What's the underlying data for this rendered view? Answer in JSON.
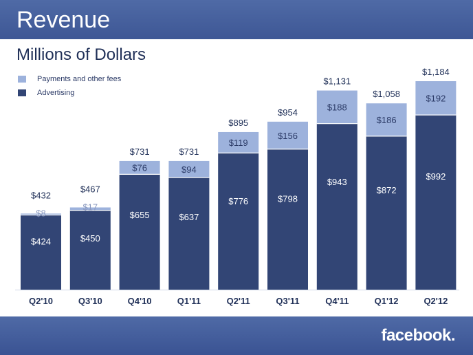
{
  "header": {
    "title": "Revenue"
  },
  "footer": {
    "logo_text": "facebook."
  },
  "colors": {
    "advertising": "#324575",
    "payments": "#9db2dc",
    "accent": "#3b5998"
  },
  "chart_data": {
    "type": "bar",
    "stacked": true,
    "title": "Revenue",
    "subtitle": "Millions of Dollars",
    "categories": [
      "Q2'10",
      "Q3'10",
      "Q4'10",
      "Q1'11",
      "Q2'11",
      "Q3'11",
      "Q4'11",
      "Q1'12",
      "Q2'12"
    ],
    "series": [
      {
        "name": "Advertising",
        "values": [
          424,
          450,
          655,
          637,
          776,
          798,
          943,
          872,
          992
        ],
        "labels": [
          "$424",
          "$450",
          "$655",
          "$637",
          "$776",
          "$798",
          "$943",
          "$872",
          "$992"
        ]
      },
      {
        "name": "Payments and other fees",
        "values": [
          8,
          17,
          76,
          94,
          119,
          156,
          188,
          186,
          192
        ],
        "labels": [
          "$8",
          "$17",
          "$76",
          "$94",
          "$119",
          "$156",
          "$188",
          "$186",
          "$192"
        ]
      }
    ],
    "totals": [
      432,
      467,
      731,
      731,
      895,
      954,
      1131,
      1058,
      1184
    ],
    "total_labels": [
      "$432",
      "$467",
      "$731",
      "$731",
      "$895",
      "$954",
      "$1,131",
      "$1,058",
      "$1,184"
    ],
    "xlabel": "",
    "ylabel": "",
    "ylim": [
      0,
      1184
    ],
    "grid": false,
    "legend": "top-left"
  }
}
